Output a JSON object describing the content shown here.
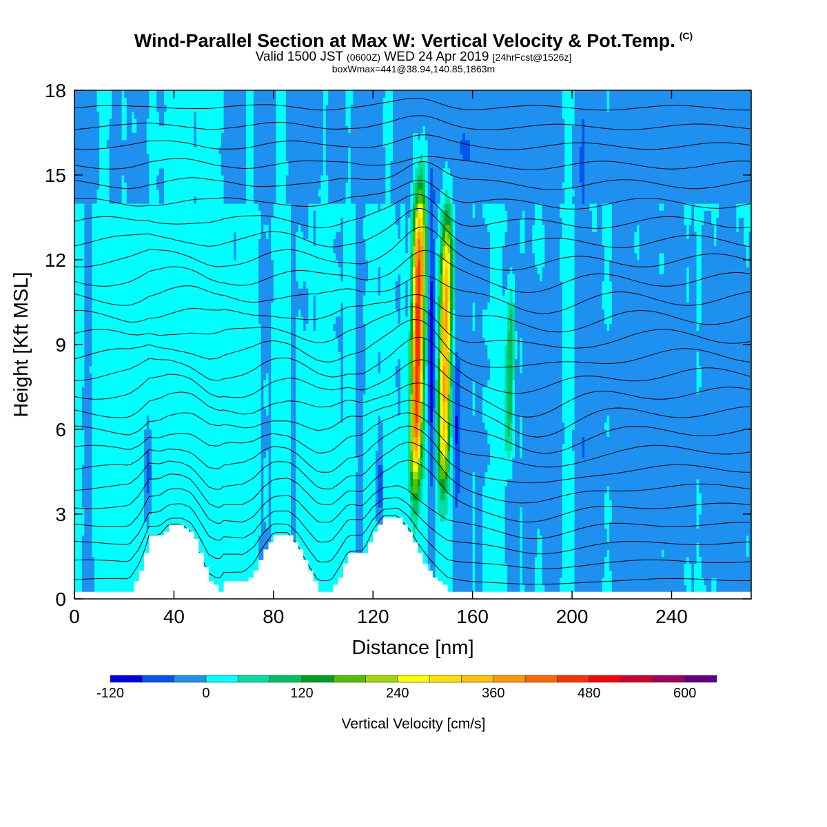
{
  "header": {
    "title": "Wind-Parallel Section at Max W: Vertical Velocity & Pot.Temp.",
    "copyright": "(C)",
    "valid_prefix": "Valid 1500 JST",
    "valid_utc": "(0600Z)",
    "valid_date": "WED 24 Apr 2019",
    "forecast_info": "[24hrFcst@1526z]",
    "box_info": "boxWmax=441@38.94,140.85,1863m"
  },
  "chart_data": {
    "type": "heatmap",
    "xlabel": "Distance [nm]",
    "ylabel": "Height [Kft MSL]",
    "xlim": [
      0,
      272
    ],
    "ylim": [
      0,
      18
    ],
    "x_ticks": [
      0,
      40,
      80,
      120,
      160,
      200,
      240
    ],
    "y_ticks": [
      0,
      3,
      6,
      9,
      12,
      15,
      18
    ],
    "background_w": "0 to 40 cm/s with weak sinking (-40 to 0) widespread",
    "updraft_cores": [
      {
        "x_nm": 138,
        "z_bottom_kft": 4,
        "z_top_kft": 14.5,
        "max_w": 480
      },
      {
        "x_nm": 149,
        "z_bottom_kft": 4,
        "z_top_kft": 13.5,
        "max_w": 360
      },
      {
        "x_nm": 175,
        "z_bottom_kft": 5,
        "z_top_kft": 11,
        "max_w": 120
      }
    ],
    "terrain": [
      [
        0,
        0.3
      ],
      [
        22,
        0.3
      ],
      [
        26,
        1.0
      ],
      [
        30,
        2.2
      ],
      [
        34,
        2.2
      ],
      [
        38,
        2.6
      ],
      [
        43,
        2.6
      ],
      [
        47,
        2.3
      ],
      [
        50,
        1.6
      ],
      [
        54,
        0.6
      ],
      [
        58,
        0.3
      ],
      [
        60,
        0.6
      ],
      [
        68,
        0.6
      ],
      [
        72,
        1.0
      ],
      [
        76,
        1.8
      ],
      [
        80,
        2.3
      ],
      [
        86,
        2.3
      ],
      [
        90,
        1.8
      ],
      [
        94,
        1.0
      ],
      [
        98,
        0.3
      ],
      [
        103,
        0.3
      ],
      [
        106,
        0.8
      ],
      [
        110,
        1.6
      ],
      [
        116,
        1.6
      ],
      [
        120,
        2.4
      ],
      [
        124,
        2.9
      ],
      [
        130,
        2.9
      ],
      [
        134,
        2.4
      ],
      [
        138,
        1.6
      ],
      [
        142,
        1.0
      ],
      [
        146,
        0.6
      ],
      [
        150,
        0.3
      ],
      [
        272,
        0.3
      ]
    ],
    "theta_contour_count": 27,
    "colorbar": {
      "label": "Vertical Velocity [cm/s]",
      "levels": [
        -120,
        -80,
        -40,
        0,
        40,
        80,
        120,
        160,
        200,
        240,
        280,
        320,
        360,
        400,
        440,
        480,
        520,
        560,
        600,
        640
      ],
      "tick_labels": [
        -120,
        0,
        120,
        240,
        360,
        480,
        600
      ],
      "colors": [
        "#0000e6",
        "#0055ee",
        "#1e90f0",
        "#00ffff",
        "#00e0a0",
        "#00c060",
        "#00a020",
        "#50c000",
        "#a0d800",
        "#ffff00",
        "#ffe000",
        "#ffc000",
        "#ff9800",
        "#ff6800",
        "#ff3000",
        "#ff0000",
        "#d20030",
        "#a00060",
        "#600080"
      ]
    }
  },
  "colors": {
    "weak_sink": "#1e90f0",
    "moderate_sink": "#0055ee",
    "strong_sink": "#0000e6",
    "weak_lift": "#00ffff",
    "contour": "#000000",
    "terrain": "#ffffff"
  }
}
